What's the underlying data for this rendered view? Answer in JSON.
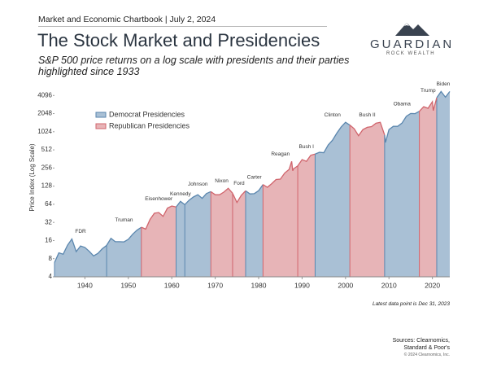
{
  "page": {
    "chartbook": "Market and Economic Chartbook | July 2, 2024",
    "logo_name": "GUARDIAN",
    "logo_sub": "ROCK WEALTH",
    "sources": "Sources: Clearnomics, Standard & Poor's",
    "copyright": "© 2024 Clearnomics, Inc."
  },
  "chart_data": {
    "type": "area",
    "title": "The Stock Market and Presidencies",
    "subtitle": "S&P 500 price returns on a log scale with presidents and their parties highlighted since 1933",
    "y_label": "Price Index (Log Scale)",
    "note": "Latest data point is Dec 31, 2023",
    "log_scale": true,
    "legend": "upper left",
    "xlim": [
      1933,
      2024
    ],
    "xticks": [
      1940,
      1950,
      1960,
      1970,
      1980,
      1990,
      2000,
      2010,
      2020
    ],
    "ylim": [
      4,
      6000
    ],
    "yticks": [
      4,
      8,
      16,
      32,
      64,
      128,
      256,
      512,
      1024,
      2048,
      4096
    ],
    "x": [
      1933,
      1934,
      1935,
      1936,
      1937,
      1938,
      1939,
      1940,
      1941,
      1942,
      1943,
      1944,
      1945,
      1946,
      1947,
      1948,
      1949,
      1950,
      1951,
      1952,
      1953,
      1954,
      1955,
      1956,
      1957,
      1958,
      1959,
      1960,
      1961,
      1962,
      1963,
      1964,
      1965,
      1966,
      1967,
      1968,
      1969,
      1970,
      1971,
      1972,
      1973,
      1974,
      1975,
      1976,
      1977,
      1978,
      1979,
      1980,
      1981,
      1982,
      1983,
      1984,
      1985,
      1986,
      1987,
      1987.6,
      1987.85,
      1988,
      1989,
      1990,
      1991,
      1992,
      1993,
      1994,
      1995,
      1996,
      1997,
      1998,
      1999,
      2000,
      2001,
      2002,
      2003,
      2004,
      2005,
      2006,
      2007,
      2008,
      2009,
      2009.2,
      2010,
      2011,
      2012,
      2013,
      2014,
      2015,
      2016,
      2017,
      2018,
      2019,
      2020,
      2020.2,
      2021,
      2022,
      2023,
      2024
    ],
    "values": [
      6.9,
      10,
      9.5,
      13.4,
      17,
      10.5,
      13,
      12.3,
      10.6,
      8.9,
      9.8,
      11.7,
      13.3,
      17.4,
      15.3,
      15.3,
      15.2,
      16.8,
      20.4,
      23.8,
      26.6,
      24.8,
      35.9,
      45.5,
      46.7,
      40.3,
      55.2,
      59.9,
      57.6,
      71.6,
      63.1,
      75,
      84.8,
      92.4,
      80.3,
      96.5,
      103.9,
      92.1,
      92.2,
      102.1,
      118,
      97.6,
      68.6,
      90.2,
      107,
      95.1,
      96.1,
      107.9,
      135.8,
      122.6,
      140.6,
      164.9,
      167.2,
      211.3,
      242.2,
      330,
      230,
      247,
      277.7,
      353.4,
      330.2,
      417.1,
      435.7,
      466.5,
      459.3,
      615.9,
      740.7,
      970.4,
      1229,
      1469,
      1320,
      1148,
      880,
      1112,
      1212,
      1248,
      1418,
      1468,
      903,
      680,
      1115,
      1258,
      1258,
      1426,
      1848,
      2059,
      2044,
      2239,
      2674,
      2507,
      3231,
      2300,
      3756,
      4766,
      3840,
      4770
    ],
    "series": [
      {
        "name": "Democrat Presidencies",
        "color": "#5a86ae",
        "fill": "#a9c0d5",
        "presidents": [
          {
            "name": "FDR",
            "start": 1933
          },
          {
            "name": "Truman",
            "start": 1945
          },
          {
            "name": "Kennedy",
            "start": 1961
          },
          {
            "name": "Johnson",
            "start": 1963
          },
          {
            "name": "Carter",
            "start": 1977
          },
          {
            "name": "Clinton",
            "start": 1993
          },
          {
            "name": "Obama",
            "start": 2009
          },
          {
            "name": "Biden",
            "start": 2021
          }
        ]
      },
      {
        "name": "Republican Presidencies",
        "color": "#d0646c",
        "fill": "#e7b4b7",
        "presidents": [
          {
            "name": "Eisenhower",
            "start": 1953
          },
          {
            "name": "Nixon",
            "start": 1969
          },
          {
            "name": "Ford",
            "start": 1974
          },
          {
            "name": "Reagan",
            "start": 1981
          },
          {
            "name": "Bush I",
            "start": 1989
          },
          {
            "name": "Bush II",
            "start": 2001
          },
          {
            "name": "Trump",
            "start": 2017
          }
        ]
      }
    ]
  }
}
